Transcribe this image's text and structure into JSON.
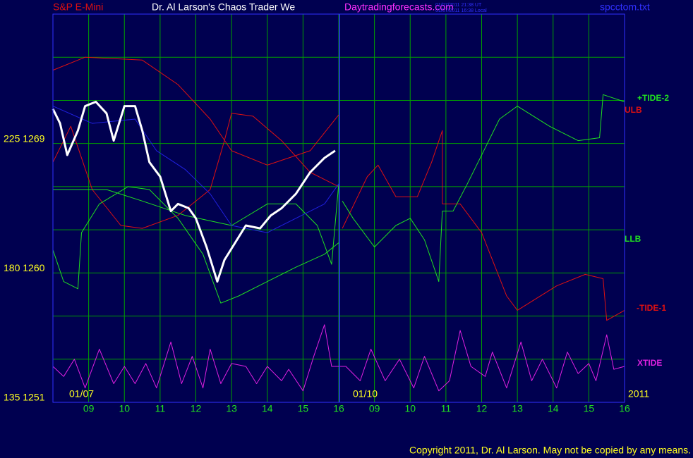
{
  "header": {
    "instrument": "S&P E-Mini",
    "title": "Dr. Al Larson's Chaos Trader We",
    "site": "Daytradingforecasts.com",
    "time_ut": "01/07/2011 21:38 UT",
    "time_local": "01/07/2011 16:38 Local",
    "file": "spcctom.txt"
  },
  "footer": "Copyright 2011, Dr. Al Larson. May not be copied by any means.",
  "chart_data": {
    "type": "line",
    "xlim": [
      0,
      16
    ],
    "ylim": [
      1251,
      1278
    ],
    "xticks": [
      {
        "value": 1,
        "label": "09"
      },
      {
        "value": 2,
        "label": "10"
      },
      {
        "value": 3,
        "label": "11"
      },
      {
        "value": 4,
        "label": "12"
      },
      {
        "value": 5,
        "label": "13"
      },
      {
        "value": 6,
        "label": "14"
      },
      {
        "value": 7,
        "label": "15"
      },
      {
        "value": 8,
        "label": "16"
      },
      {
        "value": 9,
        "label": "09"
      },
      {
        "value": 10,
        "label": "10"
      },
      {
        "value": 11,
        "label": "11"
      },
      {
        "value": 12,
        "label": "12"
      },
      {
        "value": 13,
        "label": "13"
      },
      {
        "value": 14,
        "label": "14"
      },
      {
        "value": 15,
        "label": "15"
      },
      {
        "value": 16,
        "label": "16"
      }
    ],
    "date_labels": [
      "01/07",
      "01/10",
      "2011"
    ],
    "yticks": [
      {
        "value": 1269,
        "label": "225 1269"
      },
      {
        "value": 1260,
        "label": "180 1260"
      },
      {
        "value": 1251,
        "label": "135 1251"
      }
    ],
    "ygrid": [
      1251,
      1254,
      1257,
      1260,
      1263,
      1266,
      1269,
      1272,
      1275,
      1278
    ],
    "grid": true,
    "series": [
      {
        "name": "ULB",
        "color": "#e01010",
        "x": [
          0,
          0.9,
          2.5,
          3.5,
          4.4,
          5.0,
          6.0,
          7.2,
          8.0
        ],
        "values": [
          1274.1,
          1275.0,
          1274.8,
          1273.1,
          1270.7,
          1268.5,
          1267.5,
          1268.5,
          1271.0
        ]
      },
      {
        "name": "-TIDE-1",
        "color": "#e01010",
        "x": [
          8.1,
          8.8,
          9.1,
          9.6,
          10.2,
          10.6,
          10.9,
          10.9,
          11.4,
          12.0,
          12.7,
          13.0,
          14.1,
          14.9,
          15.4,
          15.5,
          16.0
        ],
        "values": [
          1263.1,
          1266.7,
          1267.5,
          1265.3,
          1265.3,
          1267.7,
          1269.9,
          1264.8,
          1264.8,
          1262.8,
          1258.4,
          1257.4,
          1259.1,
          1259.9,
          1259.6,
          1256.7,
          1257.4
        ]
      },
      {
        "color": "#e01010",
        "x": [
          0,
          0.5,
          1.1,
          1.9,
          2.5,
          3.5,
          4.4,
          4.8,
          5.0,
          5.6,
          6.4,
          7.2,
          8.0
        ],
        "values": [
          1267.7,
          1270.2,
          1265.8,
          1263.3,
          1263.1,
          1264.0,
          1265.8,
          1269.2,
          1271.1,
          1270.9,
          1269.2,
          1267.0,
          1266.0
        ]
      },
      {
        "name": "LLB",
        "color": "#20e020",
        "x": [
          0,
          0.3,
          0.7,
          0.8,
          1.3,
          2.1,
          2.7,
          3.5,
          4.2,
          4.7,
          5.2,
          6.0,
          6.8,
          7.6,
          8.0
        ],
        "values": [
          1261.6,
          1259.4,
          1258.9,
          1262.8,
          1264.8,
          1266.0,
          1265.8,
          1263.8,
          1261.3,
          1257.9,
          1258.4,
          1259.4,
          1260.4,
          1261.3,
          1262.1
        ]
      },
      {
        "color": "#20e020",
        "x": [
          0,
          1.5,
          2.5,
          3.7,
          5.0,
          6.0,
          6.8,
          7.4,
          7.8,
          8.0
        ],
        "values": [
          1265.8,
          1265.8,
          1265.0,
          1264.0,
          1263.3,
          1264.8,
          1264.8,
          1263.3,
          1260.6,
          1266.2
        ]
      },
      {
        "name": "+TIDE-2",
        "color": "#20e020",
        "x": [
          8.1,
          8.4,
          9.0,
          9.6,
          10.0,
          10.4,
          10.8,
          10.9,
          11.2,
          11.6,
          12.1,
          12.5,
          13.0,
          13.9,
          14.7,
          15.3,
          15.4,
          16.0
        ],
        "values": [
          1265.0,
          1263.8,
          1261.8,
          1263.3,
          1263.8,
          1262.3,
          1259.4,
          1264.3,
          1264.3,
          1266.2,
          1268.7,
          1270.7,
          1271.6,
          1270.2,
          1269.2,
          1269.4,
          1272.4,
          1271.9
        ]
      },
      {
        "color": "#2020e0",
        "x": [
          0,
          1.1,
          2.3,
          2.9,
          3.7,
          4.4,
          5.0,
          6.0,
          6.8,
          7.6,
          8.0
        ],
        "values": [
          1271.6,
          1270.4,
          1270.7,
          1268.5,
          1267.2,
          1265.5,
          1263.3,
          1262.8,
          1263.8,
          1264.8,
          1266.2
        ]
      },
      {
        "color": "#ffffff",
        "x": [
          0,
          0.2,
          0.4,
          0.7,
          0.9,
          1.2,
          1.5,
          1.7,
          2.0,
          2.3,
          2.5,
          2.7,
          3.0,
          3.3,
          3.5,
          3.8,
          4.0,
          4.3,
          4.6,
          4.8,
          5.1,
          5.4,
          5.8,
          6.1,
          6.4,
          6.8,
          7.2,
          7.6,
          7.9
        ],
        "values": [
          1271.4,
          1270.4,
          1268.2,
          1269.9,
          1271.6,
          1271.9,
          1271.1,
          1269.2,
          1271.6,
          1271.6,
          1269.9,
          1267.7,
          1266.7,
          1264.3,
          1264.8,
          1264.5,
          1263.8,
          1261.8,
          1259.4,
          1260.9,
          1262.1,
          1263.3,
          1263.1,
          1264.0,
          1264.5,
          1265.5,
          1267.0,
          1268.0,
          1268.5
        ]
      },
      {
        "name": "XTIDE",
        "color": "#e020e0",
        "x": [
          0,
          0.3,
          0.6,
          0.9,
          1.3,
          1.7,
          2.0,
          2.3,
          2.6,
          2.9,
          3.3,
          3.6,
          3.9,
          4.2,
          4.4,
          4.7,
          5.0,
          5.4,
          5.7,
          6.0,
          6.4,
          6.6,
          7.0,
          7.3,
          7.6,
          7.8,
          8.2,
          8.6,
          8.9,
          9.3,
          9.7,
          10.1,
          10.4,
          10.8,
          11.1,
          11.4,
          11.7,
          12.1,
          12.3,
          12.7,
          13.1,
          13.4,
          13.7,
          14.1,
          14.4,
          14.7,
          15.0,
          15.2,
          15.5,
          15.7,
          16.0
        ],
        "values": [
          1253.5,
          1252.8,
          1254.0,
          1252.0,
          1254.7,
          1252.3,
          1253.5,
          1252.3,
          1253.7,
          1252.0,
          1255.2,
          1252.3,
          1254.2,
          1252.0,
          1254.7,
          1252.3,
          1253.7,
          1253.5,
          1252.3,
          1253.5,
          1252.5,
          1253.3,
          1251.8,
          1254.2,
          1256.4,
          1253.5,
          1253.5,
          1252.5,
          1254.7,
          1252.5,
          1254.0,
          1252.0,
          1254.2,
          1251.8,
          1252.5,
          1256.0,
          1253.5,
          1252.8,
          1254.5,
          1252.0,
          1255.2,
          1252.5,
          1254.0,
          1252.0,
          1254.5,
          1253.0,
          1253.7,
          1252.5,
          1255.7,
          1253.3,
          1253.5
        ]
      }
    ]
  }
}
